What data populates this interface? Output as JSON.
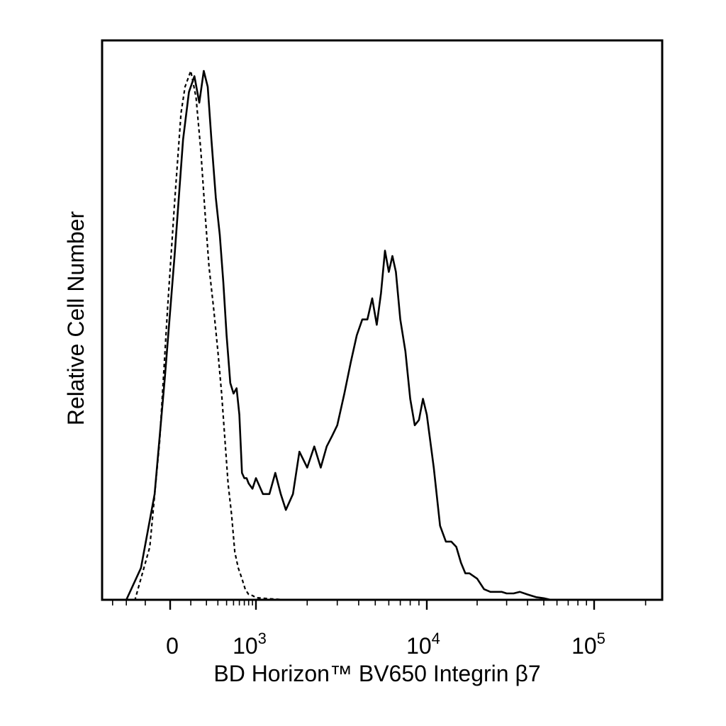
{
  "chart_data": {
    "type": "line",
    "title": "",
    "xlabel": "BD Horizon™ BV650 Integrin β7",
    "ylabel": "Relative Cell Number",
    "x_scale": "biexponential",
    "xlim": [
      -400,
      250000
    ],
    "ylim": [
      0,
      1
    ],
    "grid": false,
    "legend": "none",
    "x_ticks": [
      {
        "value": 0,
        "base": "0",
        "exp": ""
      },
      {
        "value": 1000,
        "base": "10",
        "exp": "3"
      },
      {
        "value": 10000,
        "base": "10",
        "exp": "4"
      },
      {
        "value": 100000,
        "base": "10",
        "exp": "5"
      }
    ],
    "series": [
      {
        "style": "solid",
        "color": "#000000",
        "x": [
          -200,
          -120,
          -60,
          -20,
          20,
          60,
          90,
          120,
          150,
          180,
          210,
          240,
          280,
          320,
          360,
          400,
          450,
          500,
          550,
          600,
          650,
          700,
          750,
          800,
          900,
          1000,
          1100,
          1200,
          1300,
          1400,
          1500,
          1650,
          1800,
          2000,
          2200,
          2400,
          2600,
          2800,
          3000,
          3300,
          3600,
          3900,
          4200,
          4500,
          4800,
          5100,
          5400,
          5700,
          6000,
          6300,
          6600,
          7000,
          7500,
          8000,
          8500,
          9000,
          9500,
          10000,
          11000,
          12000,
          13000,
          14000,
          15000,
          16000,
          17000,
          18000,
          20000,
          22000,
          24000,
          26000,
          28000,
          30000,
          33000,
          36000,
          40000,
          45000,
          50000,
          55000,
          60000,
          70000,
          80000,
          100000,
          150000,
          250000
        ],
        "y": [
          0.0,
          0.06,
          0.2,
          0.42,
          0.65,
          0.87,
          0.96,
          0.99,
          0.94,
          1.0,
          0.97,
          0.87,
          0.76,
          0.69,
          0.6,
          0.5,
          0.41,
          0.39,
          0.4,
          0.35,
          0.24,
          0.23,
          0.23,
          0.22,
          0.21,
          0.23,
          0.2,
          0.2,
          0.24,
          0.2,
          0.17,
          0.2,
          0.28,
          0.25,
          0.29,
          0.25,
          0.29,
          0.31,
          0.33,
          0.39,
          0.45,
          0.5,
          0.53,
          0.53,
          0.57,
          0.52,
          0.58,
          0.66,
          0.62,
          0.65,
          0.62,
          0.53,
          0.47,
          0.38,
          0.33,
          0.34,
          0.38,
          0.35,
          0.25,
          0.14,
          0.11,
          0.11,
          0.1,
          0.07,
          0.05,
          0.05,
          0.04,
          0.02,
          0.015,
          0.015,
          0.015,
          0.012,
          0.012,
          0.015,
          0.01,
          0.005,
          0.003,
          0.0,
          0.0,
          0.0,
          0.0,
          0.0,
          0.0,
          0.0
        ]
      },
      {
        "style": "dashed",
        "color": "#000000",
        "x": [
          -400,
          -250,
          -150,
          -80,
          -40,
          -10,
          20,
          50,
          70,
          100,
          130,
          160,
          190,
          220,
          260,
          300,
          340,
          380,
          420,
          470,
          520,
          580,
          650,
          720,
          800,
          900,
          1000,
          1200,
          1500,
          2000,
          3000,
          5000,
          10000,
          30000,
          100000,
          250000
        ],
        "y": [
          0.0,
          0.0,
          0.0,
          0.1,
          0.3,
          0.55,
          0.75,
          0.92,
          0.97,
          1.0,
          0.95,
          0.85,
          0.73,
          0.63,
          0.55,
          0.47,
          0.39,
          0.3,
          0.22,
          0.16,
          0.09,
          0.06,
          0.04,
          0.02,
          0.01,
          0.008,
          0.004,
          0.002,
          0.0,
          0.0,
          0.0,
          0.0,
          0.0,
          0.0,
          0.0,
          0.0
        ]
      }
    ]
  }
}
